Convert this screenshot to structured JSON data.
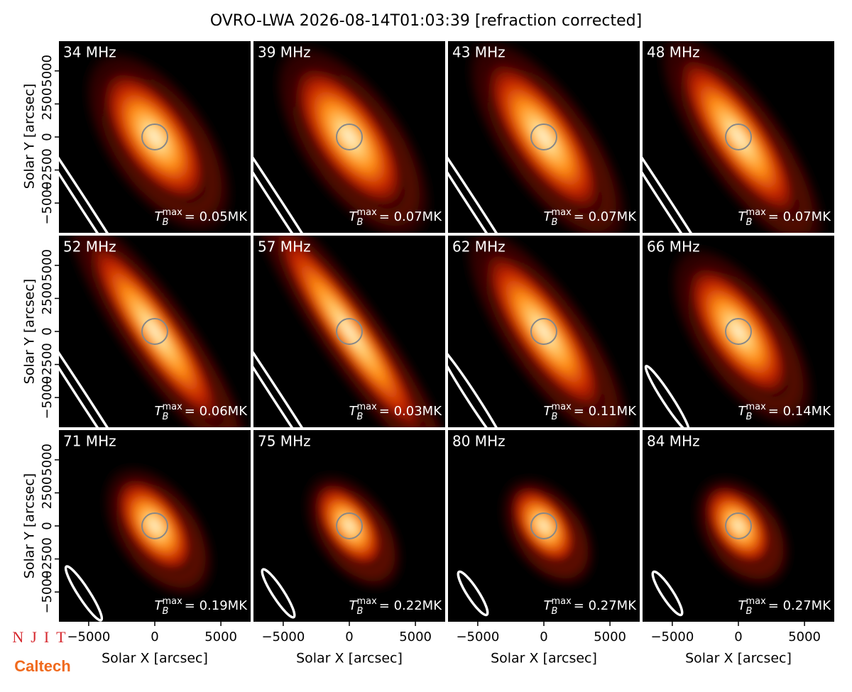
{
  "chart_data": {
    "type": "image-grid",
    "title": "OVRO-LWA 2026-08-14T01:03:39 [refraction corrected]",
    "xlabel": "Solar X [arcsec]",
    "ylabel": "Solar Y [arcsec]",
    "xlim": [
      -7250,
      7250
    ],
    "ylim": [
      -7250,
      7250
    ],
    "xticks": [
      {
        "value": -5000,
        "label": "−5000"
      },
      0,
      5000
    ],
    "yticks": [
      {
        "value": -5000,
        "label": "−5000"
      },
      {
        "value": -2500,
        "label": "−2500"
      },
      0,
      2500,
      5000
    ],
    "tb_symbol": "T",
    "tb_sub": "B",
    "tb_sup": "max",
    "panels": [
      {
        "title": "34 MHz",
        "tb_max": 0.05,
        "tb_max_label": "= 0.05MK"
      },
      {
        "title": "39 MHz",
        "tb_max": 0.07,
        "tb_max_label": "= 0.07MK"
      },
      {
        "title": "43 MHz",
        "tb_max": 0.07,
        "tb_max_label": "= 0.07MK"
      },
      {
        "title": "48 MHz",
        "tb_max": 0.07,
        "tb_max_label": "= 0.07MK"
      },
      {
        "title": "52 MHz",
        "tb_max": 0.06,
        "tb_max_label": "= 0.06MK"
      },
      {
        "title": "57 MHz",
        "tb_max": 0.03,
        "tb_max_label": "= 0.03MK"
      },
      {
        "title": "62 MHz",
        "tb_max": 0.11,
        "tb_max_label": "= 0.11MK"
      },
      {
        "title": "66 MHz",
        "tb_max": 0.14,
        "tb_max_label": "= 0.14MK"
      },
      {
        "title": "71 MHz",
        "tb_max": 0.19,
        "tb_max_label": "= 0.19MK"
      },
      {
        "title": "75 MHz",
        "tb_max": 0.22,
        "tb_max_label": "= 0.22MK"
      },
      {
        "title": "80 MHz",
        "tb_max": 0.27,
        "tb_max_label": "= 0.27MK"
      },
      {
        "title": "84 MHz",
        "tb_max": 0.27,
        "tb_max_label": "= 0.27MK"
      }
    ]
  },
  "logos": [
    "NJIT",
    "Caltech"
  ]
}
